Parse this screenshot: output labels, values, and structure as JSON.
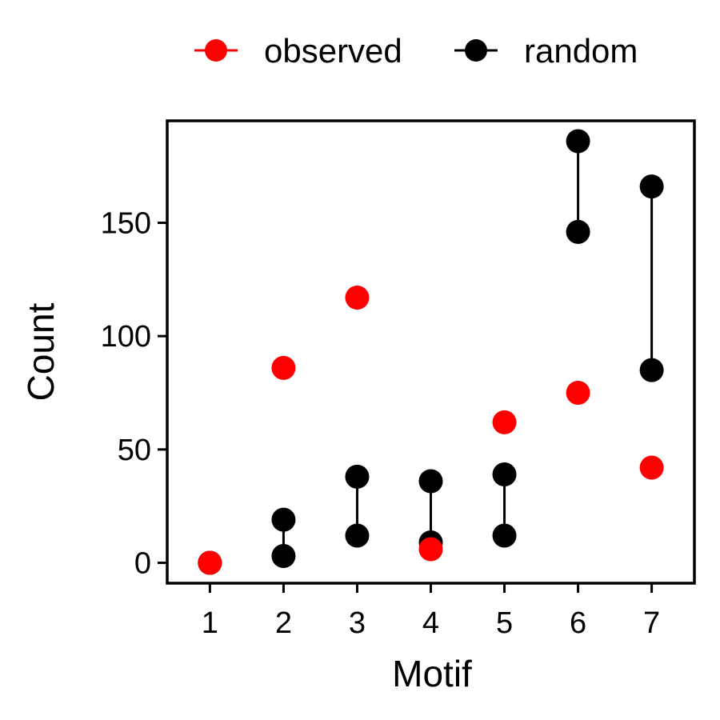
{
  "chart_data": {
    "type": "scatter",
    "title": "",
    "xlabel": "Motif",
    "ylabel": "Count",
    "x": [
      1,
      2,
      3,
      4,
      5,
      6,
      7
    ],
    "xlim": [
      0.42,
      7.58
    ],
    "ylim": [
      -9,
      195
    ],
    "yticks": [
      0,
      50,
      100,
      150
    ],
    "grid": false,
    "legend": {
      "position": "top",
      "entries": [
        "observed",
        "random"
      ]
    },
    "series": [
      {
        "name": "observed",
        "color": "#ff0000",
        "values": [
          0,
          86,
          117,
          6,
          62,
          75,
          42
        ]
      },
      {
        "name": "random",
        "color": "#000000",
        "ranges": [
          [
            0,
            0
          ],
          [
            3,
            19
          ],
          [
            12,
            38
          ],
          [
            9,
            36
          ],
          [
            12,
            39
          ],
          [
            146,
            186
          ],
          [
            85,
            166
          ]
        ]
      }
    ]
  }
}
